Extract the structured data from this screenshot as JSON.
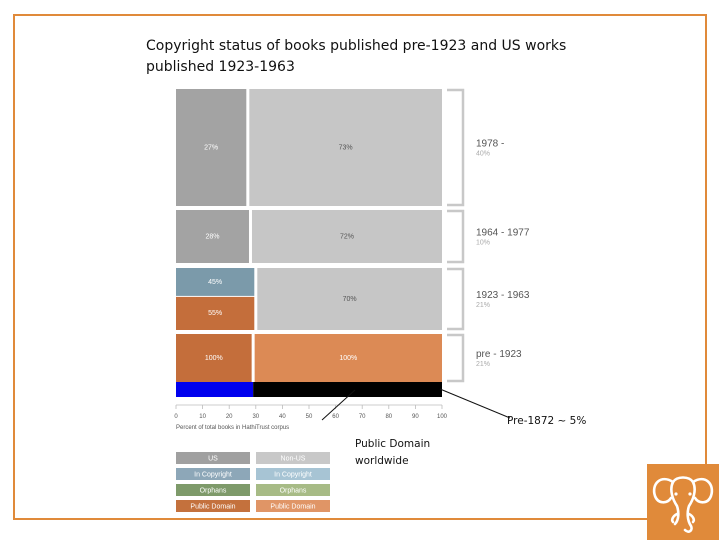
{
  "slide": {
    "title_line1": "Copyright status of books published pre-1923 and US works",
    "title_line2": "published 1923-1963",
    "note_pre1872": "Pre-1872 ~ 5%",
    "note_pd_line1": "Public Domain",
    "note_pd_line2": "worldwide"
  },
  "colors": {
    "frame": "#e08a3a",
    "us": "#a3a3a3",
    "non_us": "#c6c6c6",
    "in_copyright_us": "#7b9aaa",
    "public_domain_us": "#c46e3b",
    "public_domain_non_us": "#dc8a55",
    "pre1872_highlight": "#0000ee",
    "public_domain_worldwide_bar": "#000000",
    "legend": [
      "#a0a0a0",
      "#c8c8c8",
      "#8da7b8",
      "#a7c4d4",
      "#7e9a6a",
      "#a7bb86",
      "#c4713d",
      "#e09566"
    ]
  },
  "chart_data": {
    "type": "mosaic",
    "title": "",
    "xlabel": "Percent of total books in HathiTrust corpus",
    "xlim": [
      0,
      100
    ],
    "xticks": [
      0,
      10,
      20,
      30,
      40,
      50,
      60,
      70,
      80,
      90,
      100
    ],
    "groups": [
      {
        "period": "1978 -",
        "share": "40%",
        "share_value": 40,
        "segments": [
          {
            "category": "US",
            "value": 27,
            "label": "27%"
          },
          {
            "category": "Non-US",
            "value": 73,
            "label": "73%"
          }
        ]
      },
      {
        "period": "1964 - 1977",
        "share": "10%",
        "share_value": 10,
        "segments": [
          {
            "category": "US",
            "value": 28,
            "label": "28%"
          },
          {
            "category": "Non-US",
            "value": 72,
            "label": "72%"
          }
        ]
      },
      {
        "period": "1923 - 1963",
        "share": "21%",
        "share_value": 21,
        "segments": [
          {
            "category": "US",
            "value": 30,
            "sub": [
              {
                "status": "In Copyright",
                "value": 45,
                "label": "45%"
              },
              {
                "status": "Public Domain",
                "value": 55,
                "label": "55%"
              }
            ]
          },
          {
            "category": "Non-US",
            "value": 70,
            "label": "70%"
          }
        ]
      },
      {
        "period": "pre - 1923",
        "share": "21%",
        "share_value": 21,
        "segments": [
          {
            "category": "US",
            "value": 29,
            "label": "100%"
          },
          {
            "category": "Non-US",
            "value": 71,
            "label": "100%"
          }
        ]
      }
    ],
    "highlights": [
      {
        "name": "Pre-1872",
        "x_range": [
          0,
          29
        ]
      },
      {
        "name": "Public Domain worldwide",
        "x_range": [
          29,
          100
        ]
      }
    ],
    "legend": [
      {
        "label": "US"
      },
      {
        "label": "Non-US"
      },
      {
        "label": "In Copyright"
      },
      {
        "label": "In Copyright"
      },
      {
        "label": "Orphans"
      },
      {
        "label": "Orphans"
      },
      {
        "label": "Public Domain"
      },
      {
        "label": "Public Domain"
      }
    ]
  }
}
